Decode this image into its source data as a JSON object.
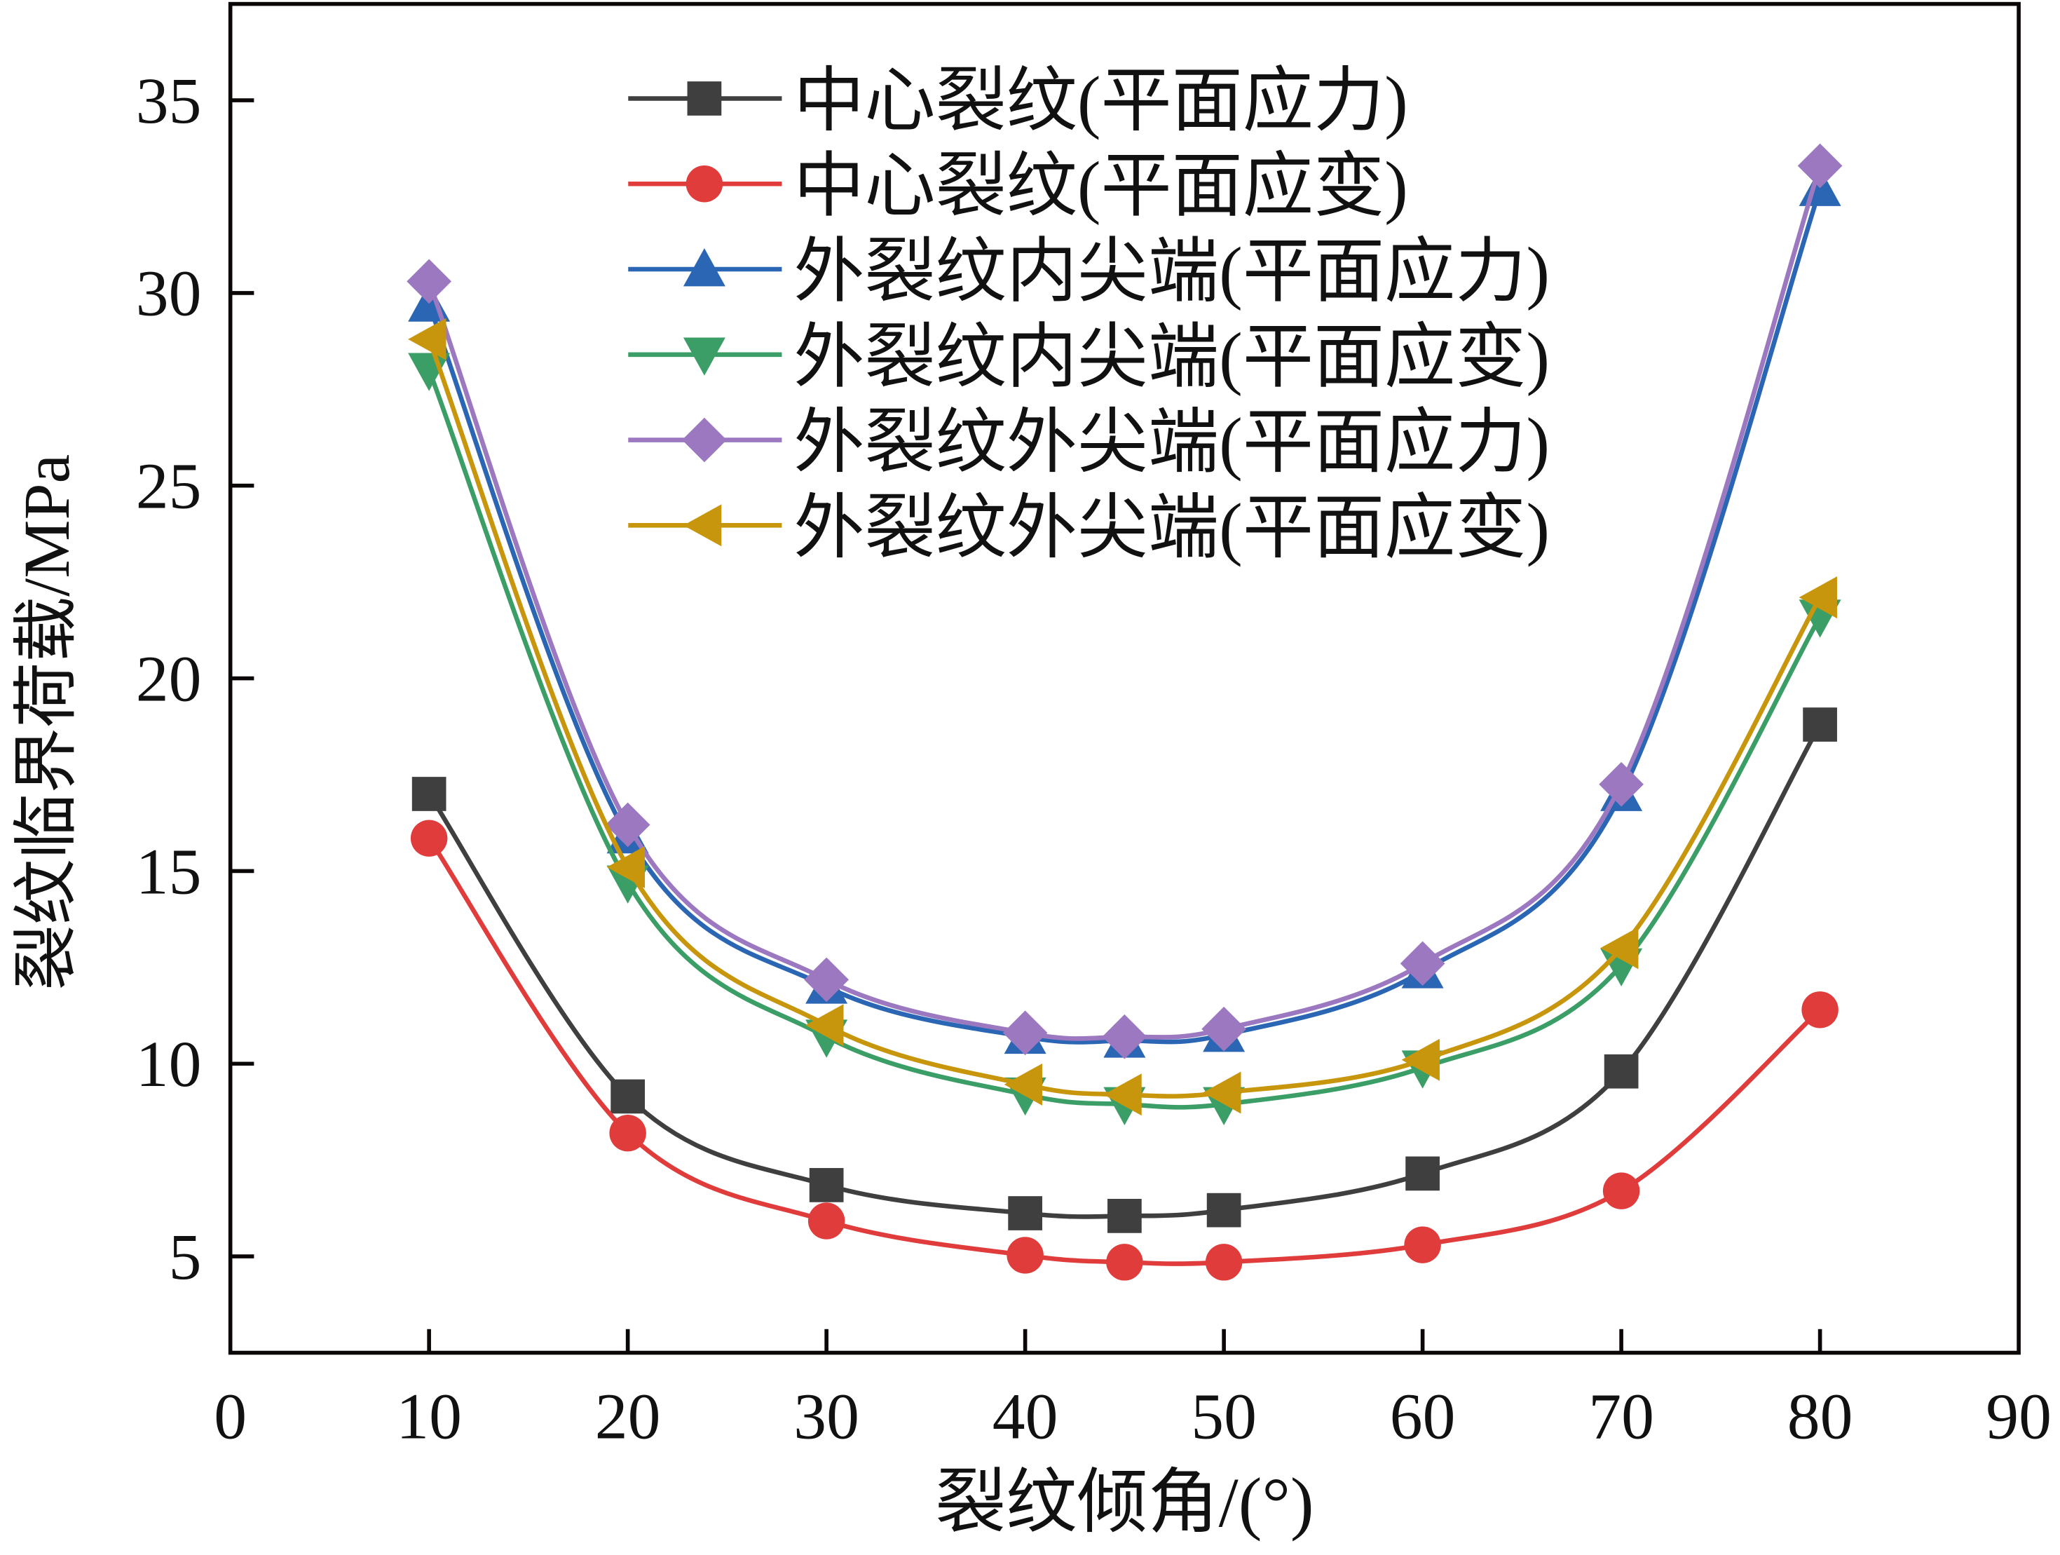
{
  "chart_data": {
    "type": "line",
    "title": "",
    "xlabel": "裂纹倾角/(°)",
    "ylabel": "裂纹临界荷载/MPa",
    "xlim": [
      0,
      90
    ],
    "ylim": [
      2.5,
      37.5
    ],
    "xticks": [
      0,
      10,
      20,
      30,
      40,
      50,
      60,
      70,
      80,
      90
    ],
    "yticks": [
      5,
      10,
      15,
      20,
      25,
      30,
      35
    ],
    "grid": false,
    "legend_position": "top-center",
    "x": [
      10,
      20,
      30,
      40,
      45,
      50,
      60,
      70,
      80
    ],
    "series": [
      {
        "name": "中心裂纹(平面应力)",
        "color": "#3f3f3f",
        "marker": "square",
        "values": [
          17.0,
          9.15,
          6.85,
          6.12,
          6.05,
          6.2,
          7.15,
          9.8,
          18.8
        ]
      },
      {
        "name": "中心裂纹(平面应变)",
        "color": "#e03c3c",
        "marker": "circle",
        "values": [
          15.85,
          8.2,
          5.92,
          5.03,
          4.85,
          4.85,
          5.3,
          6.7,
          11.4
        ]
      },
      {
        "name": "外裂纹内尖端(平面应力)",
        "color": "#2a66b4",
        "marker": "triangle-up",
        "values": [
          29.7,
          15.9,
          12.0,
          10.7,
          10.6,
          10.75,
          12.4,
          17.0,
          32.7
        ]
      },
      {
        "name": "外裂纹内尖端(平面应变)",
        "color": "#3a9e66",
        "marker": "triangle-down",
        "values": [
          28.0,
          14.7,
          10.7,
          9.2,
          8.95,
          8.95,
          9.9,
          12.55,
          21.6
        ]
      },
      {
        "name": "外裂纹外尖端(平面应力)",
        "color": "#9b78c0",
        "marker": "diamond",
        "values": [
          30.3,
          16.2,
          12.18,
          10.8,
          10.7,
          10.9,
          12.6,
          17.25,
          33.3
        ]
      },
      {
        "name": "外裂纹外尖端(平面应变)",
        "color": "#c8960c",
        "marker": "triangle-left",
        "values": [
          28.8,
          15.1,
          11.0,
          9.46,
          9.2,
          9.25,
          10.1,
          13.0,
          22.1
        ]
      }
    ]
  }
}
